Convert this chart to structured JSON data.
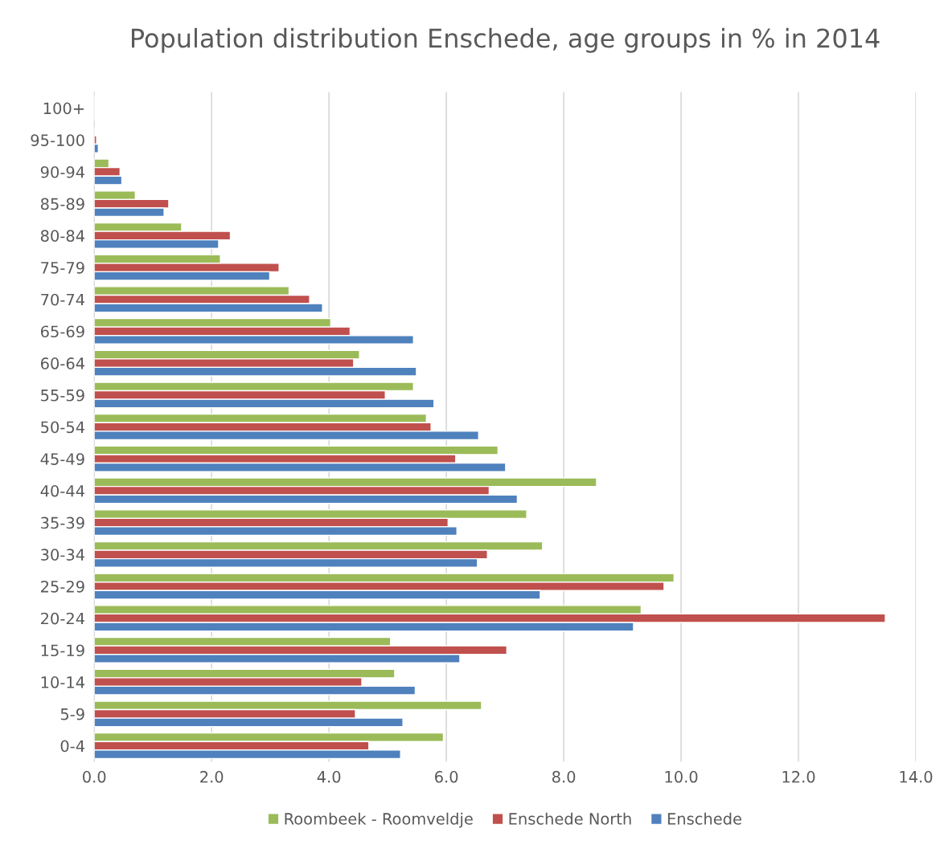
{
  "chart_data": {
    "type": "bar",
    "orientation": "horizontal",
    "title": "Population distribution Enschede, age groups in % in 2014",
    "categories": [
      "100+",
      "95-100",
      "90-94",
      "85-89",
      "80-84",
      "75-79",
      "70-74",
      "65-69",
      "60-64",
      "55-59",
      "50-54",
      "45-49",
      "40-44",
      "35-39",
      "30-34",
      "25-29",
      "20-24",
      "15-19",
      "10-14",
      "5-9",
      "0-4"
    ],
    "series": [
      {
        "name": "Roombeek - Roomveldje",
        "color": "#9bbb59",
        "values": [
          null,
          null,
          0.25,
          0.7,
          1.49,
          2.15,
          3.32,
          4.03,
          4.52,
          5.44,
          5.66,
          6.88,
          8.56,
          7.37,
          7.64,
          9.88,
          9.32,
          5.05,
          5.12,
          6.6,
          5.95
        ]
      },
      {
        "name": "Enschede North",
        "color": "#c0504d",
        "values": [
          null,
          0.04,
          0.44,
          1.27,
          2.32,
          3.15,
          3.67,
          4.36,
          4.42,
          4.96,
          5.74,
          6.16,
          6.73,
          6.03,
          6.7,
          9.71,
          13.48,
          7.03,
          4.56,
          4.45,
          4.68
        ]
      },
      {
        "name": "Enschede",
        "color": "#4f81bd",
        "values": [
          null,
          0.07,
          0.47,
          1.19,
          2.12,
          2.99,
          3.89,
          5.44,
          5.49,
          5.79,
          6.55,
          7.01,
          7.21,
          6.18,
          6.53,
          7.6,
          9.19,
          6.23,
          5.47,
          5.26,
          5.22
        ]
      }
    ],
    "xlim": [
      0,
      14
    ],
    "xticks": [
      {
        "value": 0,
        "label": "0.0"
      },
      {
        "value": 2,
        "label": "2.0"
      },
      {
        "value": 4,
        "label": "4.0"
      },
      {
        "value": 6,
        "label": "6.0"
      },
      {
        "value": 8,
        "label": "8.0"
      },
      {
        "value": 10,
        "label": "10.0"
      },
      {
        "value": 12,
        "label": "12.0"
      },
      {
        "value": 14,
        "label": "14.0"
      }
    ],
    "grid": "x",
    "legend": "bottom"
  }
}
